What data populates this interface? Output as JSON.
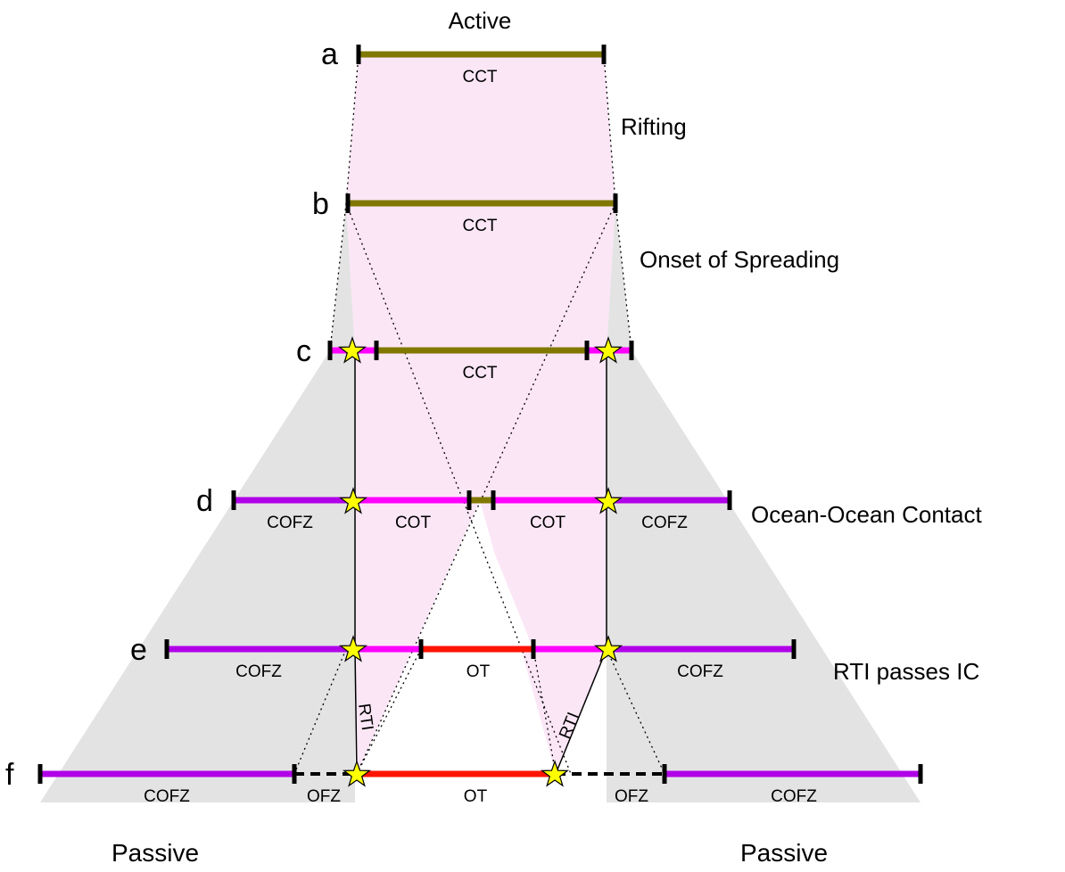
{
  "row_letters": {
    "a": "a",
    "b": "b",
    "c": "c",
    "d": "d",
    "e": "e",
    "f": "f"
  },
  "stage_labels": {
    "active": "Active",
    "rifting": "Rifting",
    "onset": "Onset of Spreading",
    "ocean_contact": "Ocean-Ocean Contact",
    "rti_passes": "RTI passes IC",
    "passive_left": "Passive",
    "passive_right": "Passive"
  },
  "segment_labels": {
    "a_cct": "CCT",
    "b_cct": "CCT",
    "c_cct": "CCT",
    "d_cofz_left": "COFZ",
    "d_cot_left": "COT",
    "d_cot_right": "COT",
    "d_cofz_right": "COFZ",
    "e_cofz_left": "COFZ",
    "e_ot": "OT",
    "e_cofz_right": "COFZ",
    "f_cofz_left": "COFZ",
    "f_ofz_left": "OFZ",
    "f_ot": "OT",
    "f_ofz_right": "OFZ",
    "f_cofz_right": "COFZ"
  },
  "rti_labels": {
    "left": "RTI",
    "right": "RTI"
  },
  "colors": {
    "cct": "#807800",
    "cot": "#ff00ff",
    "cofz": "#b000e8",
    "ot": "#ff1400",
    "pink_fill": "#fbe6f6",
    "gray_fill": "#e3e3e3",
    "star": "#ffff00"
  },
  "icons": {
    "star": "star-icon",
    "tick": "tick-mark"
  }
}
